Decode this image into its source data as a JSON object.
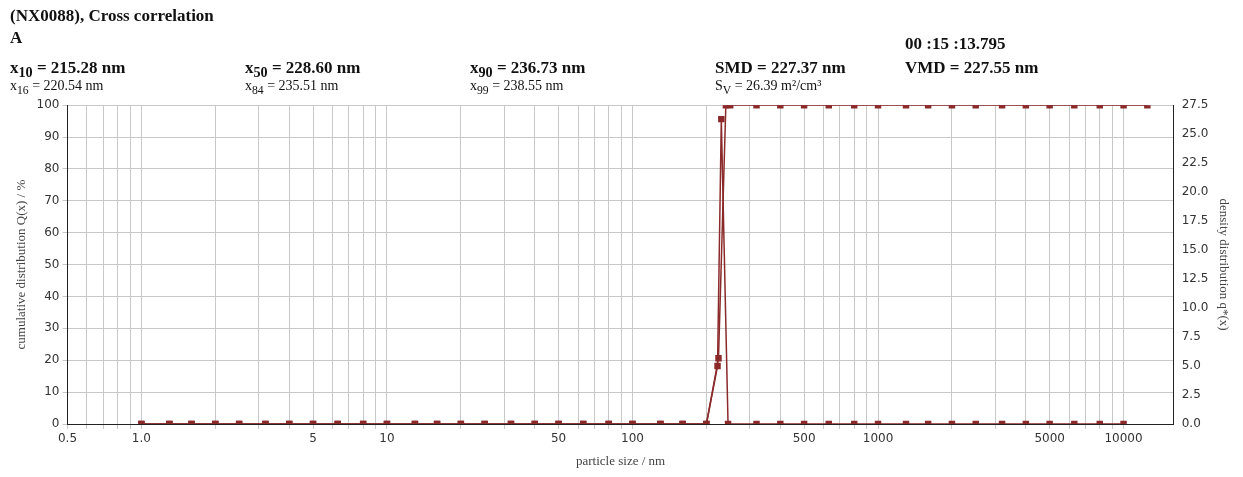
{
  "chart_data": {
    "type": "line",
    "title": "(NX0088), Cross correlation",
    "xlabel": "particle size / nm",
    "ylabel": "cumulative distribution Q(x) / %",
    "y2label": "density distribution q*(x)",
    "annotations": [
      "A",
      "00 :15 :13.795",
      "x$_{10}$ = 215.28 nm",
      "x$_{50}$ = 228.60 nm",
      "x$_{90}$ = 236.73 nm",
      "SMD = 227.37 nm",
      "VMD = 227.55 nm",
      "x$_{16}$ = 220.54 nm",
      "x$_{84}$ = 235.51 nm",
      "x$_{99}$ = 238.55 nm",
      "S$_{V}$ = 26.39 m²/cm³"
    ],
    "log": "x",
    "grid": true,
    "marker": "square",
    "line_style": "solid",
    "xlim": [
      0.5,
      16000
    ],
    "xticks": [
      0.5,
      {
        "value": 0.6,
        "label": null
      },
      {
        "value": 0.7,
        "label": null
      },
      {
        "value": 0.8,
        "label": null
      },
      {
        "value": 0.9,
        "label": null
      },
      {
        "value": 1,
        "label": "1.0"
      },
      {
        "value": 2,
        "label": null
      },
      {
        "value": 3,
        "label": null
      },
      {
        "value": 4,
        "label": null
      },
      5,
      {
        "value": 6,
        "label": null
      },
      {
        "value": 7,
        "label": null
      },
      {
        "value": 8,
        "label": null
      },
      {
        "value": 9,
        "label": null
      },
      10,
      {
        "value": 20,
        "label": null
      },
      {
        "value": 30,
        "label": null
      },
      {
        "value": 40,
        "label": null
      },
      50,
      {
        "value": 60,
        "label": null
      },
      {
        "value": 70,
        "label": null
      },
      {
        "value": 80,
        "label": null
      },
      {
        "value": 90,
        "label": null
      },
      100,
      {
        "value": 200,
        "label": null
      },
      {
        "value": 300,
        "label": null
      },
      {
        "value": 400,
        "label": null
      },
      500,
      {
        "value": 600,
        "label": null
      },
      {
        "value": 700,
        "label": null
      },
      {
        "value": 800,
        "label": null
      },
      {
        "value": 900,
        "label": null
      },
      1000,
      {
        "value": 2000,
        "label": null
      },
      {
        "value": 3000,
        "label": null
      },
      {
        "value": 4000,
        "label": null
      },
      5000,
      {
        "value": 6000,
        "label": null
      },
      {
        "value": 7000,
        "label": null
      },
      {
        "value": 8000,
        "label": null
      },
      {
        "value": 9000,
        "label": null
      },
      10000
    ],
    "ylim": [
      0,
      100
    ],
    "yticks": [
      0,
      10,
      20,
      30,
      40,
      50,
      60,
      70,
      80,
      90,
      100
    ],
    "y2lim": [
      0,
      27.5
    ],
    "y2ticks": [
      {
        "value": 0,
        "label": "0.0"
      },
      {
        "value": 2.5,
        "label": "2.5"
      },
      {
        "value": 5,
        "label": "5.0"
      },
      {
        "value": 7.5,
        "label": "7.5"
      },
      {
        "value": 10,
        "label": "10.0"
      },
      {
        "value": 12.5,
        "label": "12.5"
      },
      {
        "value": 15,
        "label": "15.0"
      },
      {
        "value": 17.5,
        "label": "17.5"
      },
      {
        "value": 20,
        "label": "20.0"
      },
      {
        "value": 22.5,
        "label": "22.5"
      },
      {
        "value": 25,
        "label": "25.0"
      },
      {
        "value": 27.5,
        "label": "27.5"
      }
    ],
    "series": [
      {
        "color": "#8b2a2a",
        "x": [
          1,
          1.3,
          1.6,
          2,
          2.5,
          3.2,
          4,
          5,
          6.3,
          8,
          10,
          13,
          16,
          20,
          25,
          32,
          40,
          50,
          63,
          80,
          100,
          130,
          160,
          200,
          224,
          240,
          250,
          320,
          400,
          500,
          630,
          800,
          1000,
          1300,
          1600,
          2000,
          2500,
          3200,
          4000,
          5000,
          6300,
          8000,
          10000,
          12500
        ],
        "values": [
          0,
          0,
          0,
          0,
          0,
          0,
          0,
          0,
          0,
          0,
          0,
          0,
          0,
          0,
          0,
          0,
          0,
          0,
          0,
          0,
          0,
          0,
          0,
          0,
          20.6,
          100,
          100,
          100,
          100,
          100,
          100,
          100,
          100,
          100,
          100,
          100,
          100,
          100,
          100,
          100,
          100,
          100,
          100,
          100
        ]
      },
      {
        "color": "#8b2a2a",
        "axis": "y2",
        "x": [
          1,
          1.3,
          1.6,
          2,
          2.5,
          3.2,
          4,
          5,
          6.3,
          8,
          10,
          13,
          16,
          20,
          25,
          32,
          40,
          50,
          63,
          80,
          100,
          130,
          160,
          200,
          222,
          230,
          245,
          320,
          400,
          500,
          630,
          800,
          1000,
          1300,
          1600,
          2000,
          2500,
          3200,
          4000,
          5000,
          6300,
          8000,
          10000
        ],
        "values": [
          0,
          0,
          0,
          0,
          0,
          0,
          0,
          0,
          0,
          0,
          0,
          0,
          0,
          0,
          0,
          0,
          0,
          0,
          0,
          0,
          0,
          0,
          0,
          0,
          5.0,
          26.3,
          0,
          0,
          0,
          0,
          0,
          0,
          0,
          0,
          0,
          0,
          0,
          0,
          0,
          0,
          0,
          0,
          0
        ]
      }
    ]
  }
}
